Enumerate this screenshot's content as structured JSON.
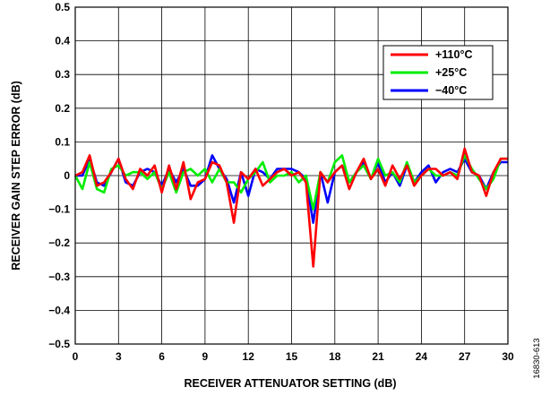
{
  "chart_data": {
    "type": "line",
    "xlabel": "RECEIVER ATTENUATOR SETTING (dB)",
    "ylabel": "RECEIVER GAIN STEP ERROR (dB)",
    "xlim": [
      0,
      30
    ],
    "ylim": [
      -0.5,
      0.5
    ],
    "x_ticks": [
      "0",
      "3",
      "6",
      "9",
      "12",
      "15",
      "18",
      "21",
      "24",
      "27",
      "30"
    ],
    "y_ticks": [
      "0.5",
      "0.4",
      "0.3",
      "0.2",
      "0.1",
      "0",
      "−0.1",
      "−0.2",
      "−0.3",
      "−0.4",
      "−0.5"
    ],
    "grid": true,
    "legend_position": "top-right",
    "figure_id": "16830-613",
    "x": [
      0,
      0.5,
      1,
      1.5,
      2,
      2.5,
      3,
      3.5,
      4,
      4.5,
      5,
      5.5,
      6,
      6.5,
      7,
      7.5,
      8,
      8.5,
      9,
      9.5,
      10,
      10.5,
      11,
      11.5,
      12,
      12.5,
      13,
      13.5,
      14,
      14.5,
      15,
      15.5,
      16,
      16.5,
      17,
      17.5,
      18,
      18.5,
      19,
      19.5,
      20,
      20.5,
      21,
      21.5,
      22,
      22.5,
      23,
      23.5,
      24,
      24.5,
      25,
      25.5,
      26,
      26.5,
      27,
      27.5,
      28,
      28.5,
      29,
      29.5,
      30
    ],
    "series": [
      {
        "name": "+110°C",
        "color": "#ff0000",
        "values": [
          0,
          0.01,
          0.06,
          -0.03,
          -0.02,
          0.01,
          0.05,
          -0.01,
          -0.04,
          0.02,
          0,
          0.03,
          -0.05,
          0.03,
          -0.04,
          0.04,
          -0.07,
          -0.02,
          -0.01,
          0.04,
          0.03,
          -0.02,
          -0.14,
          0.01,
          -0.01,
          0.02,
          -0.03,
          -0.01,
          0.01,
          0.02,
          0,
          0.01,
          -0.02,
          -0.27,
          0.01,
          -0.02,
          0.01,
          0.03,
          -0.04,
          0.01,
          0.05,
          -0.01,
          0.02,
          -0.03,
          0.03,
          -0.01,
          0.03,
          -0.03,
          0,
          0.02,
          0.02,
          0,
          0.01,
          -0.01,
          0.08,
          0.01,
          0,
          -0.06,
          0.01,
          0.05,
          0.05
        ]
      },
      {
        "name": "+25°C",
        "color": "#00ee00",
        "values": [
          0,
          -0.04,
          0.04,
          -0.04,
          -0.05,
          0.02,
          0.03,
          0,
          0.01,
          0.01,
          -0.01,
          0.01,
          -0.04,
          0.01,
          -0.05,
          0.01,
          0.02,
          0,
          0.02,
          -0.02,
          0.02,
          -0.02,
          -0.02,
          -0.05,
          -0.01,
          0.01,
          0.04,
          -0.02,
          0,
          0,
          0.01,
          -0.02,
          0,
          -0.1,
          0.01,
          -0.02,
          0.04,
          0.06,
          -0.02,
          0.01,
          0.03,
          -0.01,
          0.05,
          0,
          0.01,
          -0.02,
          0.04,
          -0.02,
          0,
          0.02,
          0,
          0,
          0.01,
          0,
          0.06,
          0.02,
          -0.01,
          -0.04,
          -0.01,
          0.05,
          0.05
        ]
      },
      {
        "name": "−40°C",
        "color": "#0000ff",
        "values": [
          0,
          0,
          0.05,
          -0.02,
          -0.03,
          0.01,
          0.05,
          -0.02,
          -0.03,
          0.01,
          0.02,
          0.01,
          -0.03,
          0.02,
          -0.02,
          0.02,
          -0.03,
          -0.03,
          -0.01,
          0.06,
          0.02,
          -0.01,
          -0.08,
          0.01,
          -0.06,
          0.02,
          0.01,
          -0.01,
          0.02,
          0.02,
          0.02,
          0.01,
          -0.01,
          -0.14,
          0.01,
          -0.08,
          0.01,
          0.03,
          -0.02,
          0.01,
          0.04,
          -0.01,
          0.04,
          -0.02,
          0.01,
          -0.03,
          0.03,
          -0.02,
          0.01,
          0.03,
          -0.02,
          0.01,
          0.02,
          0.01,
          0.05,
          0.01,
          0,
          -0.04,
          0.01,
          0.04,
          0.04
        ]
      }
    ]
  }
}
